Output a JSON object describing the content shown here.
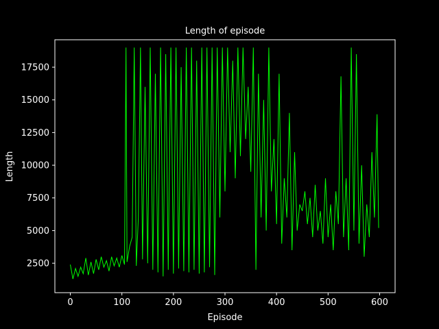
{
  "chart_data": {
    "type": "line",
    "title": "Length of episode",
    "xlabel": "Episode",
    "ylabel": "Length",
    "xlim": [
      -30,
      630
    ],
    "ylim": [
      250,
      19600
    ],
    "xticks": [
      0,
      100,
      200,
      300,
      400,
      500,
      600
    ],
    "yticks": [
      2500,
      5000,
      7500,
      10000,
      12500,
      15000,
      17500
    ],
    "grid": false,
    "legend": "none",
    "colors": {
      "background": "#000000",
      "line": "#00ff00",
      "axes": "#ffffff",
      "text": "#ffffff"
    },
    "series": [
      {
        "color": "#00ff00",
        "x": [
          0,
          5,
          10,
          15,
          20,
          25,
          30,
          35,
          40,
          45,
          50,
          55,
          60,
          65,
          70,
          75,
          80,
          85,
          90,
          95,
          100,
          105,
          108,
          110,
          115,
          120,
          124,
          128,
          132,
          136,
          140,
          145,
          150,
          155,
          160,
          165,
          170,
          175,
          180,
          185,
          190,
          195,
          200,
          205,
          210,
          215,
          220,
          225,
          230,
          235,
          240,
          245,
          250,
          255,
          260,
          265,
          270,
          275,
          280,
          285,
          290,
          295,
          300,
          305,
          310,
          315,
          320,
          325,
          330,
          335,
          340,
          345,
          350,
          355,
          360,
          365,
          370,
          375,
          380,
          385,
          390,
          395,
          400,
          405,
          410,
          415,
          420,
          425,
          430,
          435,
          440,
          445,
          450,
          455,
          460,
          465,
          470,
          475,
          480,
          485,
          490,
          495,
          500,
          505,
          510,
          515,
          520,
          525,
          530,
          535,
          540,
          545,
          550,
          555,
          560,
          565,
          570,
          575,
          580,
          585,
          590,
          595,
          598
        ],
        "y": [
          2400,
          1300,
          2100,
          1500,
          2200,
          1700,
          2900,
          1600,
          2600,
          1700,
          2800,
          2000,
          3000,
          2200,
          2700,
          1900,
          3000,
          2300,
          2900,
          2200,
          3100,
          2400,
          19000,
          2600,
          3800,
          4500,
          19000,
          2300,
          6000,
          19000,
          2800,
          16000,
          2500,
          19000,
          2000,
          17000,
          1800,
          19000,
          1500,
          18500,
          2000,
          19000,
          1700,
          19000,
          2100,
          17500,
          1900,
          19000,
          1800,
          19000,
          2000,
          18000,
          1700,
          19000,
          1800,
          19000,
          2200,
          19000,
          1600,
          19000,
          6000,
          19000,
          8000,
          19000,
          11000,
          18000,
          9000,
          19000,
          10700,
          19000,
          12000,
          16000,
          9500,
          19000,
          2000,
          17000,
          6000,
          15000,
          5000,
          19000,
          8000,
          12000,
          5500,
          17000,
          4000,
          9000,
          6000,
          14000,
          3500,
          11000,
          5000,
          7000,
          6500,
          8000,
          5500,
          7500,
          4500,
          8500,
          5000,
          6500,
          4000,
          9000,
          4500,
          7000,
          3500,
          8000,
          5500,
          16800,
          4500,
          9000,
          3500,
          19000,
          5000,
          18500,
          4000,
          10000,
          3000,
          7000,
          4500,
          11000,
          6000,
          13900,
          5200
        ]
      }
    ]
  }
}
